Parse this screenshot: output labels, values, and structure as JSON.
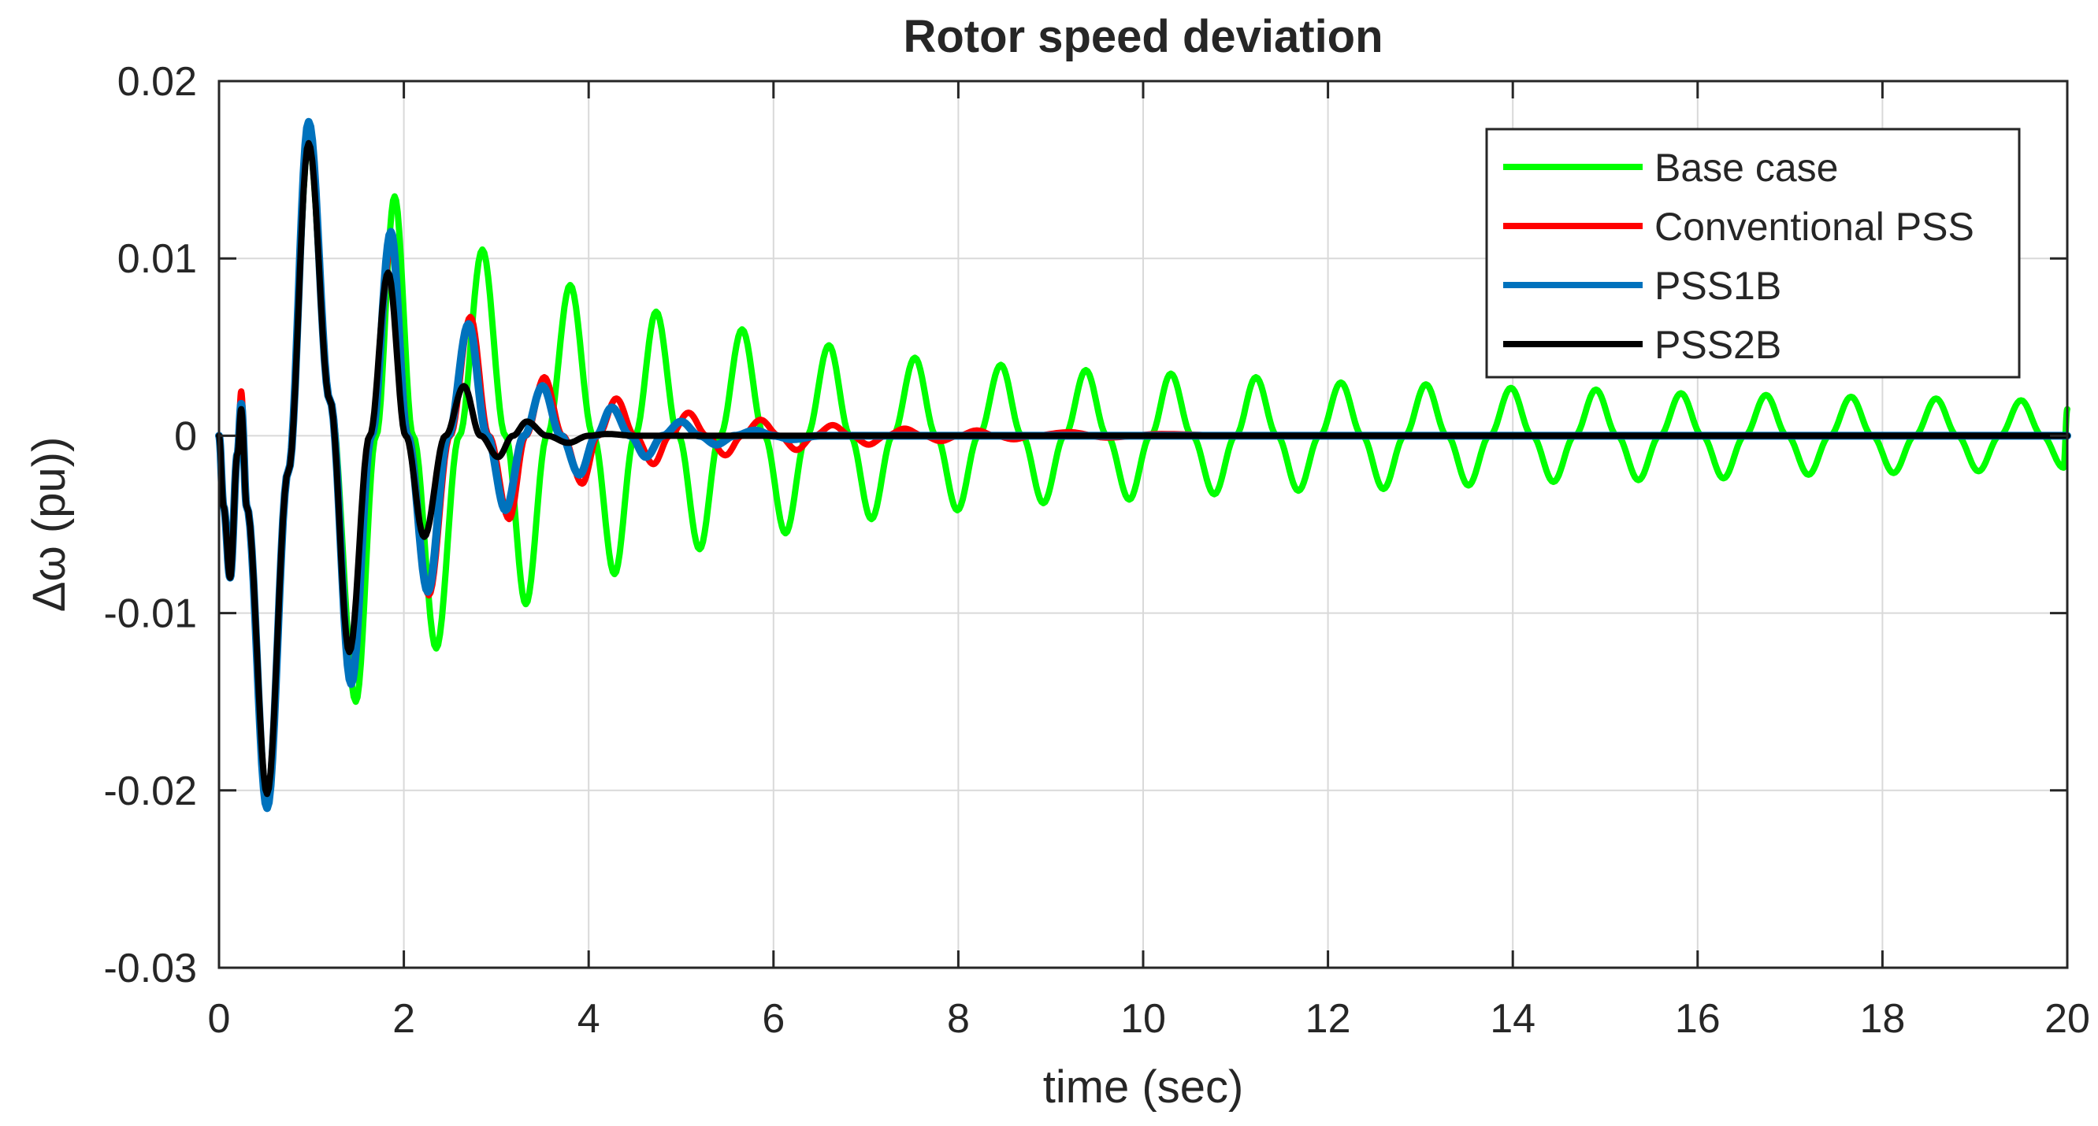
{
  "chart_data": {
    "type": "line",
    "title": "Rotor speed deviation",
    "xlabel": "time (sec)",
    "ylabel": "Δω (pu))",
    "xlim": [
      0,
      20
    ],
    "ylim": [
      -0.03,
      0.02
    ],
    "xticks": [
      0,
      2,
      4,
      6,
      8,
      10,
      12,
      14,
      16,
      18,
      20
    ],
    "yticks": [
      -0.03,
      -0.02,
      -0.01,
      0,
      0.01,
      0.02
    ],
    "xtick_labels": [
      "0",
      "2",
      "4",
      "6",
      "8",
      "10",
      "12",
      "14",
      "16",
      "18",
      "20"
    ],
    "ytick_labels": [
      "-0.03",
      "-0.02",
      "-0.01",
      "0",
      "0.01",
      "0.02"
    ],
    "grid": true,
    "legend_position": "top-right",
    "series": [
      {
        "name": "Base case",
        "color": "#00ff00",
        "points": [
          [
            0,
            0
          ],
          [
            0.05,
            -0.004
          ],
          [
            0.12,
            -0.008
          ],
          [
            0.2,
            -0.001
          ],
          [
            0.24,
            0.002
          ],
          [
            0.3,
            -0.004
          ],
          [
            0.52,
            -0.021
          ],
          [
            0.75,
            -0.002
          ],
          [
            0.97,
            0.0165
          ],
          [
            1.2,
            0.002
          ],
          [
            1.48,
            -0.015
          ],
          [
            1.7,
            0.0
          ],
          [
            1.9,
            0.0135
          ],
          [
            2.1,
            0.0
          ],
          [
            2.35,
            -0.012
          ],
          [
            2.6,
            0.0
          ],
          [
            2.85,
            0.0105
          ],
          [
            3.1,
            0.0
          ],
          [
            3.32,
            -0.0095
          ],
          [
            3.55,
            0.0
          ],
          [
            3.8,
            0.0085
          ],
          [
            4.05,
            0.0
          ],
          [
            4.28,
            -0.0078
          ],
          [
            4.5,
            0.0
          ],
          [
            4.73,
            0.007
          ],
          [
            4.97,
            0.0
          ],
          [
            5.2,
            -0.0064
          ],
          [
            5.42,
            0.0
          ],
          [
            5.66,
            0.006
          ],
          [
            5.9,
            0.0
          ],
          [
            6.13,
            -0.0055
          ],
          [
            6.36,
            0.0
          ],
          [
            6.6,
            0.0051
          ],
          [
            6.83,
            0.0
          ],
          [
            7.06,
            -0.0047
          ],
          [
            7.29,
            0.0
          ],
          [
            7.53,
            0.0044
          ],
          [
            7.76,
            0.0
          ],
          [
            7.99,
            -0.0042
          ],
          [
            8.22,
            0.0
          ],
          [
            8.46,
            0.004
          ],
          [
            8.69,
            0.0
          ],
          [
            8.92,
            -0.0038
          ],
          [
            9.15,
            0.0
          ],
          [
            9.38,
            0.0037
          ],
          [
            9.61,
            0.0
          ],
          [
            9.85,
            -0.0036
          ],
          [
            10.08,
            0.0
          ],
          [
            10.3,
            0.0035
          ],
          [
            10.53,
            0.0
          ],
          [
            10.77,
            -0.0033
          ],
          [
            11.0,
            0.0
          ],
          [
            11.22,
            0.0033
          ],
          [
            11.45,
            0.0
          ],
          [
            11.68,
            -0.0031
          ],
          [
            11.91,
            0.0
          ],
          [
            12.14,
            0.003
          ],
          [
            12.37,
            0.0
          ],
          [
            12.6,
            -0.003
          ],
          [
            12.83,
            0.0
          ],
          [
            13.06,
            0.0029
          ],
          [
            13.29,
            0.0
          ],
          [
            13.52,
            -0.0028
          ],
          [
            13.75,
            0.0
          ],
          [
            13.98,
            0.0027
          ],
          [
            14.21,
            0.0
          ],
          [
            14.44,
            -0.0026
          ],
          [
            14.67,
            0.0
          ],
          [
            14.9,
            0.0026
          ],
          [
            15.13,
            0.0
          ],
          [
            15.36,
            -0.0025
          ],
          [
            15.59,
            0.0
          ],
          [
            15.82,
            0.0024
          ],
          [
            16.05,
            0.0
          ],
          [
            16.28,
            -0.0024
          ],
          [
            16.51,
            0.0
          ],
          [
            16.74,
            0.0023
          ],
          [
            16.97,
            0.0
          ],
          [
            17.2,
            -0.0022
          ],
          [
            17.43,
            0.0
          ],
          [
            17.66,
            0.0022
          ],
          [
            17.89,
            0.0
          ],
          [
            18.12,
            -0.0021
          ],
          [
            18.35,
            0.0
          ],
          [
            18.58,
            0.0021
          ],
          [
            18.81,
            0.0
          ],
          [
            19.04,
            -0.002
          ],
          [
            19.27,
            0.0
          ],
          [
            19.5,
            0.002
          ],
          [
            19.73,
            0.0
          ],
          [
            19.96,
            -0.0018
          ],
          [
            20,
            0.0015
          ]
        ]
      },
      {
        "name": "Conventional PSS",
        "color": "#ff0000",
        "points": [
          [
            0,
            0
          ],
          [
            0.05,
            -0.004
          ],
          [
            0.12,
            -0.008
          ],
          [
            0.2,
            -0.001
          ],
          [
            0.24,
            0.0025
          ],
          [
            0.3,
            -0.004
          ],
          [
            0.52,
            -0.0205
          ],
          [
            0.75,
            -0.002
          ],
          [
            0.97,
            0.017
          ],
          [
            1.2,
            0.002
          ],
          [
            1.43,
            -0.0135
          ],
          [
            1.65,
            0.0
          ],
          [
            1.87,
            0.011
          ],
          [
            2.05,
            0.0
          ],
          [
            2.27,
            -0.009
          ],
          [
            2.5,
            0.0
          ],
          [
            2.72,
            0.0067
          ],
          [
            2.92,
            0.0
          ],
          [
            3.14,
            -0.0047
          ],
          [
            3.32,
            0.0
          ],
          [
            3.52,
            0.0033
          ],
          [
            3.72,
            0.0
          ],
          [
            3.93,
            -0.0027
          ],
          [
            4.1,
            0.0
          ],
          [
            4.3,
            0.0021
          ],
          [
            4.5,
            0.0
          ],
          [
            4.7,
            -0.0016
          ],
          [
            4.88,
            0.0
          ],
          [
            5.08,
            0.0013
          ],
          [
            5.28,
            0.0
          ],
          [
            5.48,
            -0.0011
          ],
          [
            5.66,
            0.0
          ],
          [
            5.86,
            0.0009
          ],
          [
            6.06,
            0.0
          ],
          [
            6.25,
            -0.0008
          ],
          [
            6.44,
            0.0
          ],
          [
            6.64,
            0.0006
          ],
          [
            6.84,
            0.0
          ],
          [
            7.03,
            -0.0005
          ],
          [
            7.22,
            0.0
          ],
          [
            7.42,
            0.0004
          ],
          [
            7.62,
            0.0
          ],
          [
            7.81,
            -0.0003
          ],
          [
            8.0,
            0.0
          ],
          [
            8.2,
            0.0003
          ],
          [
            8.4,
            0.0
          ],
          [
            8.6,
            -0.0002
          ],
          [
            8.8,
            0.0
          ],
          [
            9.2,
            0.0002
          ],
          [
            9.6,
            -0.0001
          ],
          [
            10.2,
            0.0001
          ],
          [
            11,
            0.0
          ],
          [
            20,
            0.0
          ]
        ]
      },
      {
        "name": "PSS1B",
        "color": "#0072bd",
        "points": [
          [
            0,
            0
          ],
          [
            0.05,
            -0.004
          ],
          [
            0.12,
            -0.008
          ],
          [
            0.2,
            -0.001
          ],
          [
            0.24,
            0.0018
          ],
          [
            0.3,
            -0.004
          ],
          [
            0.52,
            -0.021
          ],
          [
            0.75,
            -0.002
          ],
          [
            0.97,
            0.0177
          ],
          [
            1.2,
            0.002
          ],
          [
            1.43,
            -0.014
          ],
          [
            1.65,
            0.0
          ],
          [
            1.86,
            0.0115
          ],
          [
            2.04,
            0.0
          ],
          [
            2.26,
            -0.0088
          ],
          [
            2.48,
            0.0
          ],
          [
            2.7,
            0.0063
          ],
          [
            2.9,
            0.0
          ],
          [
            3.1,
            -0.0042
          ],
          [
            3.3,
            0.0
          ],
          [
            3.5,
            0.0028
          ],
          [
            3.7,
            0.0
          ],
          [
            3.9,
            -0.0022
          ],
          [
            4.08,
            0.0
          ],
          [
            4.25,
            0.0016
          ],
          [
            4.45,
            0.0
          ],
          [
            4.62,
            -0.0012
          ],
          [
            4.8,
            0.0
          ],
          [
            5.0,
            0.0008
          ],
          [
            5.2,
            0.0
          ],
          [
            5.38,
            -0.0005
          ],
          [
            5.58,
            0.0
          ],
          [
            5.8,
            0.0003
          ],
          [
            6.0,
            0.0
          ],
          [
            6.2,
            -0.0002
          ],
          [
            6.5,
            0.0
          ],
          [
            7,
            0.0
          ],
          [
            20,
            0.0
          ]
        ]
      },
      {
        "name": "PSS2B",
        "color": "#000000",
        "points": [
          [
            0,
            0
          ],
          [
            0.05,
            -0.004
          ],
          [
            0.12,
            -0.008
          ],
          [
            0.2,
            -0.001
          ],
          [
            0.24,
            0.0015
          ],
          [
            0.3,
            -0.004
          ],
          [
            0.52,
            -0.0202
          ],
          [
            0.75,
            -0.002
          ],
          [
            0.97,
            0.0165
          ],
          [
            1.2,
            0.002
          ],
          [
            1.41,
            -0.0122
          ],
          [
            1.63,
            0.0
          ],
          [
            1.83,
            0.0092
          ],
          [
            2.02,
            0.0
          ],
          [
            2.22,
            -0.0057
          ],
          [
            2.45,
            0.0
          ],
          [
            2.65,
            0.0028
          ],
          [
            2.83,
            0.0
          ],
          [
            3.02,
            -0.0012
          ],
          [
            3.18,
            0.0
          ],
          [
            3.33,
            0.0008
          ],
          [
            3.55,
            0.0
          ],
          [
            3.78,
            -0.0004
          ],
          [
            4.0,
            0.0
          ],
          [
            4.2,
            0.0001
          ],
          [
            4.5,
            0.0
          ],
          [
            20,
            0.0
          ]
        ]
      }
    ]
  }
}
